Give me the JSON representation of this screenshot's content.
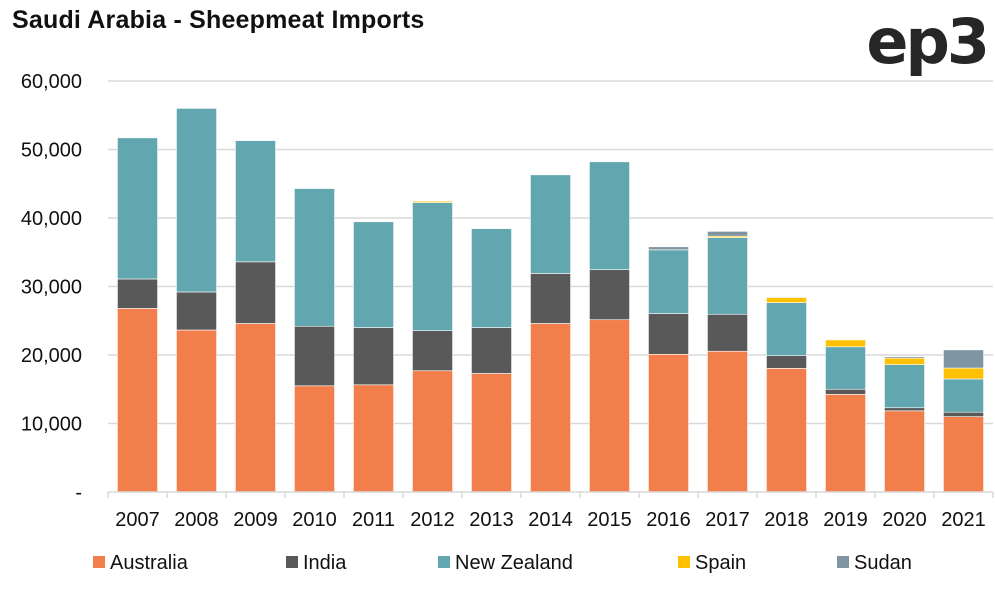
{
  "header": {
    "title": "Saudi Arabia - Sheepmeat Imports",
    "logo_text": "ep3"
  },
  "chart_data": {
    "type": "bar",
    "stacked": true,
    "title": "Saudi Arabia - Sheepmeat Imports",
    "xlabel": "",
    "ylabel": "",
    "ylim": [
      0,
      60000
    ],
    "yticks": [
      0,
      10000,
      20000,
      30000,
      40000,
      50000,
      60000
    ],
    "ytick_labels": [
      "-",
      "10,000",
      "20,000",
      "30,000",
      "40,000",
      "50,000",
      "60,000"
    ],
    "grid": true,
    "legend_position": "bottom",
    "categories": [
      "2007",
      "2008",
      "2009",
      "2010",
      "2011",
      "2012",
      "2013",
      "2014",
      "2015",
      "2016",
      "2017",
      "2018",
      "2019",
      "2020",
      "2021"
    ],
    "series": [
      {
        "name": "Australia",
        "color": "#F27E4C",
        "values": [
          26800,
          23650,
          24600,
          15500,
          15650,
          17700,
          17300,
          24600,
          25150,
          20100,
          20550,
          18050,
          14250,
          11850,
          11000
        ]
      },
      {
        "name": "India",
        "color": "#595959",
        "values": [
          4300,
          5550,
          9000,
          8700,
          8350,
          5850,
          6700,
          7300,
          7300,
          5950,
          5400,
          1850,
          750,
          450,
          650
        ]
      },
      {
        "name": "New Zealand",
        "color": "#62A7AF",
        "values": [
          20600,
          26800,
          17700,
          20100,
          15450,
          18700,
          14450,
          14400,
          15750,
          9300,
          11200,
          7750,
          6200,
          6300,
          4850
        ]
      },
      {
        "name": "Spain",
        "color": "#FFC000",
        "values": [
          0,
          0,
          0,
          0,
          0,
          200,
          0,
          0,
          0,
          0,
          200,
          750,
          1000,
          950,
          1600
        ]
      },
      {
        "name": "Sudan",
        "color": "#7F96A2",
        "values": [
          0,
          0,
          0,
          0,
          0,
          0,
          0,
          0,
          0,
          450,
          700,
          100,
          0,
          200,
          2650
        ]
      }
    ]
  }
}
